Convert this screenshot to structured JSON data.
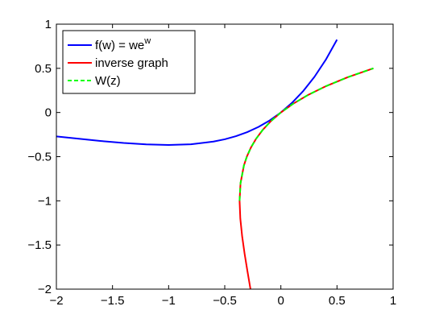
{
  "chart_data": {
    "type": "line",
    "title": "",
    "xlabel": "",
    "ylabel": "",
    "xlim": [
      -2,
      1
    ],
    "ylim": [
      -2,
      1
    ],
    "xticks": [
      "−2",
      "−1.5",
      "−1",
      "−0.5",
      "0",
      "0.5",
      "1"
    ],
    "yticks": [
      "1",
      "0.5",
      "0",
      "−0.5",
      "−1",
      "−1.5",
      "−2"
    ],
    "grid": false,
    "legend_position": "top-left",
    "series": [
      {
        "name": "f(w) = we^w",
        "label_main": "f(w) = we",
        "label_sup": "w",
        "color": "#0000ff",
        "dash": "solid",
        "x": [
          -2.0,
          -1.8,
          -1.6,
          -1.4,
          -1.2,
          -1.0,
          -0.8,
          -0.6,
          -0.5,
          -0.4,
          -0.3,
          -0.2,
          -0.1,
          0.0,
          0.1,
          0.2,
          0.3,
          0.4,
          0.5
        ],
        "y": [
          -0.2707,
          -0.2975,
          -0.323,
          -0.3452,
          -0.3614,
          -0.3679,
          -0.3595,
          -0.3293,
          -0.3033,
          -0.2681,
          -0.2222,
          -0.1637,
          -0.0905,
          0.0,
          0.1105,
          0.2443,
          0.405,
          0.5967,
          0.8244
        ]
      },
      {
        "name": "inverse graph",
        "label_main": "inverse graph",
        "label_sup": "",
        "color": "#ff0000",
        "dash": "solid",
        "x": [
          -0.2707,
          -0.2975,
          -0.323,
          -0.3452,
          -0.3614,
          -0.3679,
          -0.3595,
          -0.3293,
          -0.3033,
          -0.2681,
          -0.2222,
          -0.1637,
          -0.0905,
          0.0,
          0.1105,
          0.2443,
          0.405,
          0.5967,
          0.8244
        ],
        "y": [
          -2.0,
          -1.8,
          -1.6,
          -1.4,
          -1.2,
          -1.0,
          -0.8,
          -0.6,
          -0.5,
          -0.4,
          -0.3,
          -0.2,
          -0.1,
          0.0,
          0.1,
          0.2,
          0.3,
          0.4,
          0.5
        ]
      },
      {
        "name": "W(z)",
        "label_main": "W(z)",
        "label_sup": "",
        "color": "#00ff00",
        "dash": "dashed",
        "x": [
          -0.3679,
          -0.3595,
          -0.3293,
          -0.3033,
          -0.2681,
          -0.2222,
          -0.1637,
          -0.0905,
          0.0,
          0.1105,
          0.2443,
          0.405,
          0.5967,
          0.8244
        ],
        "y": [
          -1.0,
          -0.8,
          -0.6,
          -0.5,
          -0.4,
          -0.3,
          -0.2,
          -0.1,
          0.0,
          0.1,
          0.2,
          0.3,
          0.4,
          0.5
        ]
      }
    ]
  }
}
